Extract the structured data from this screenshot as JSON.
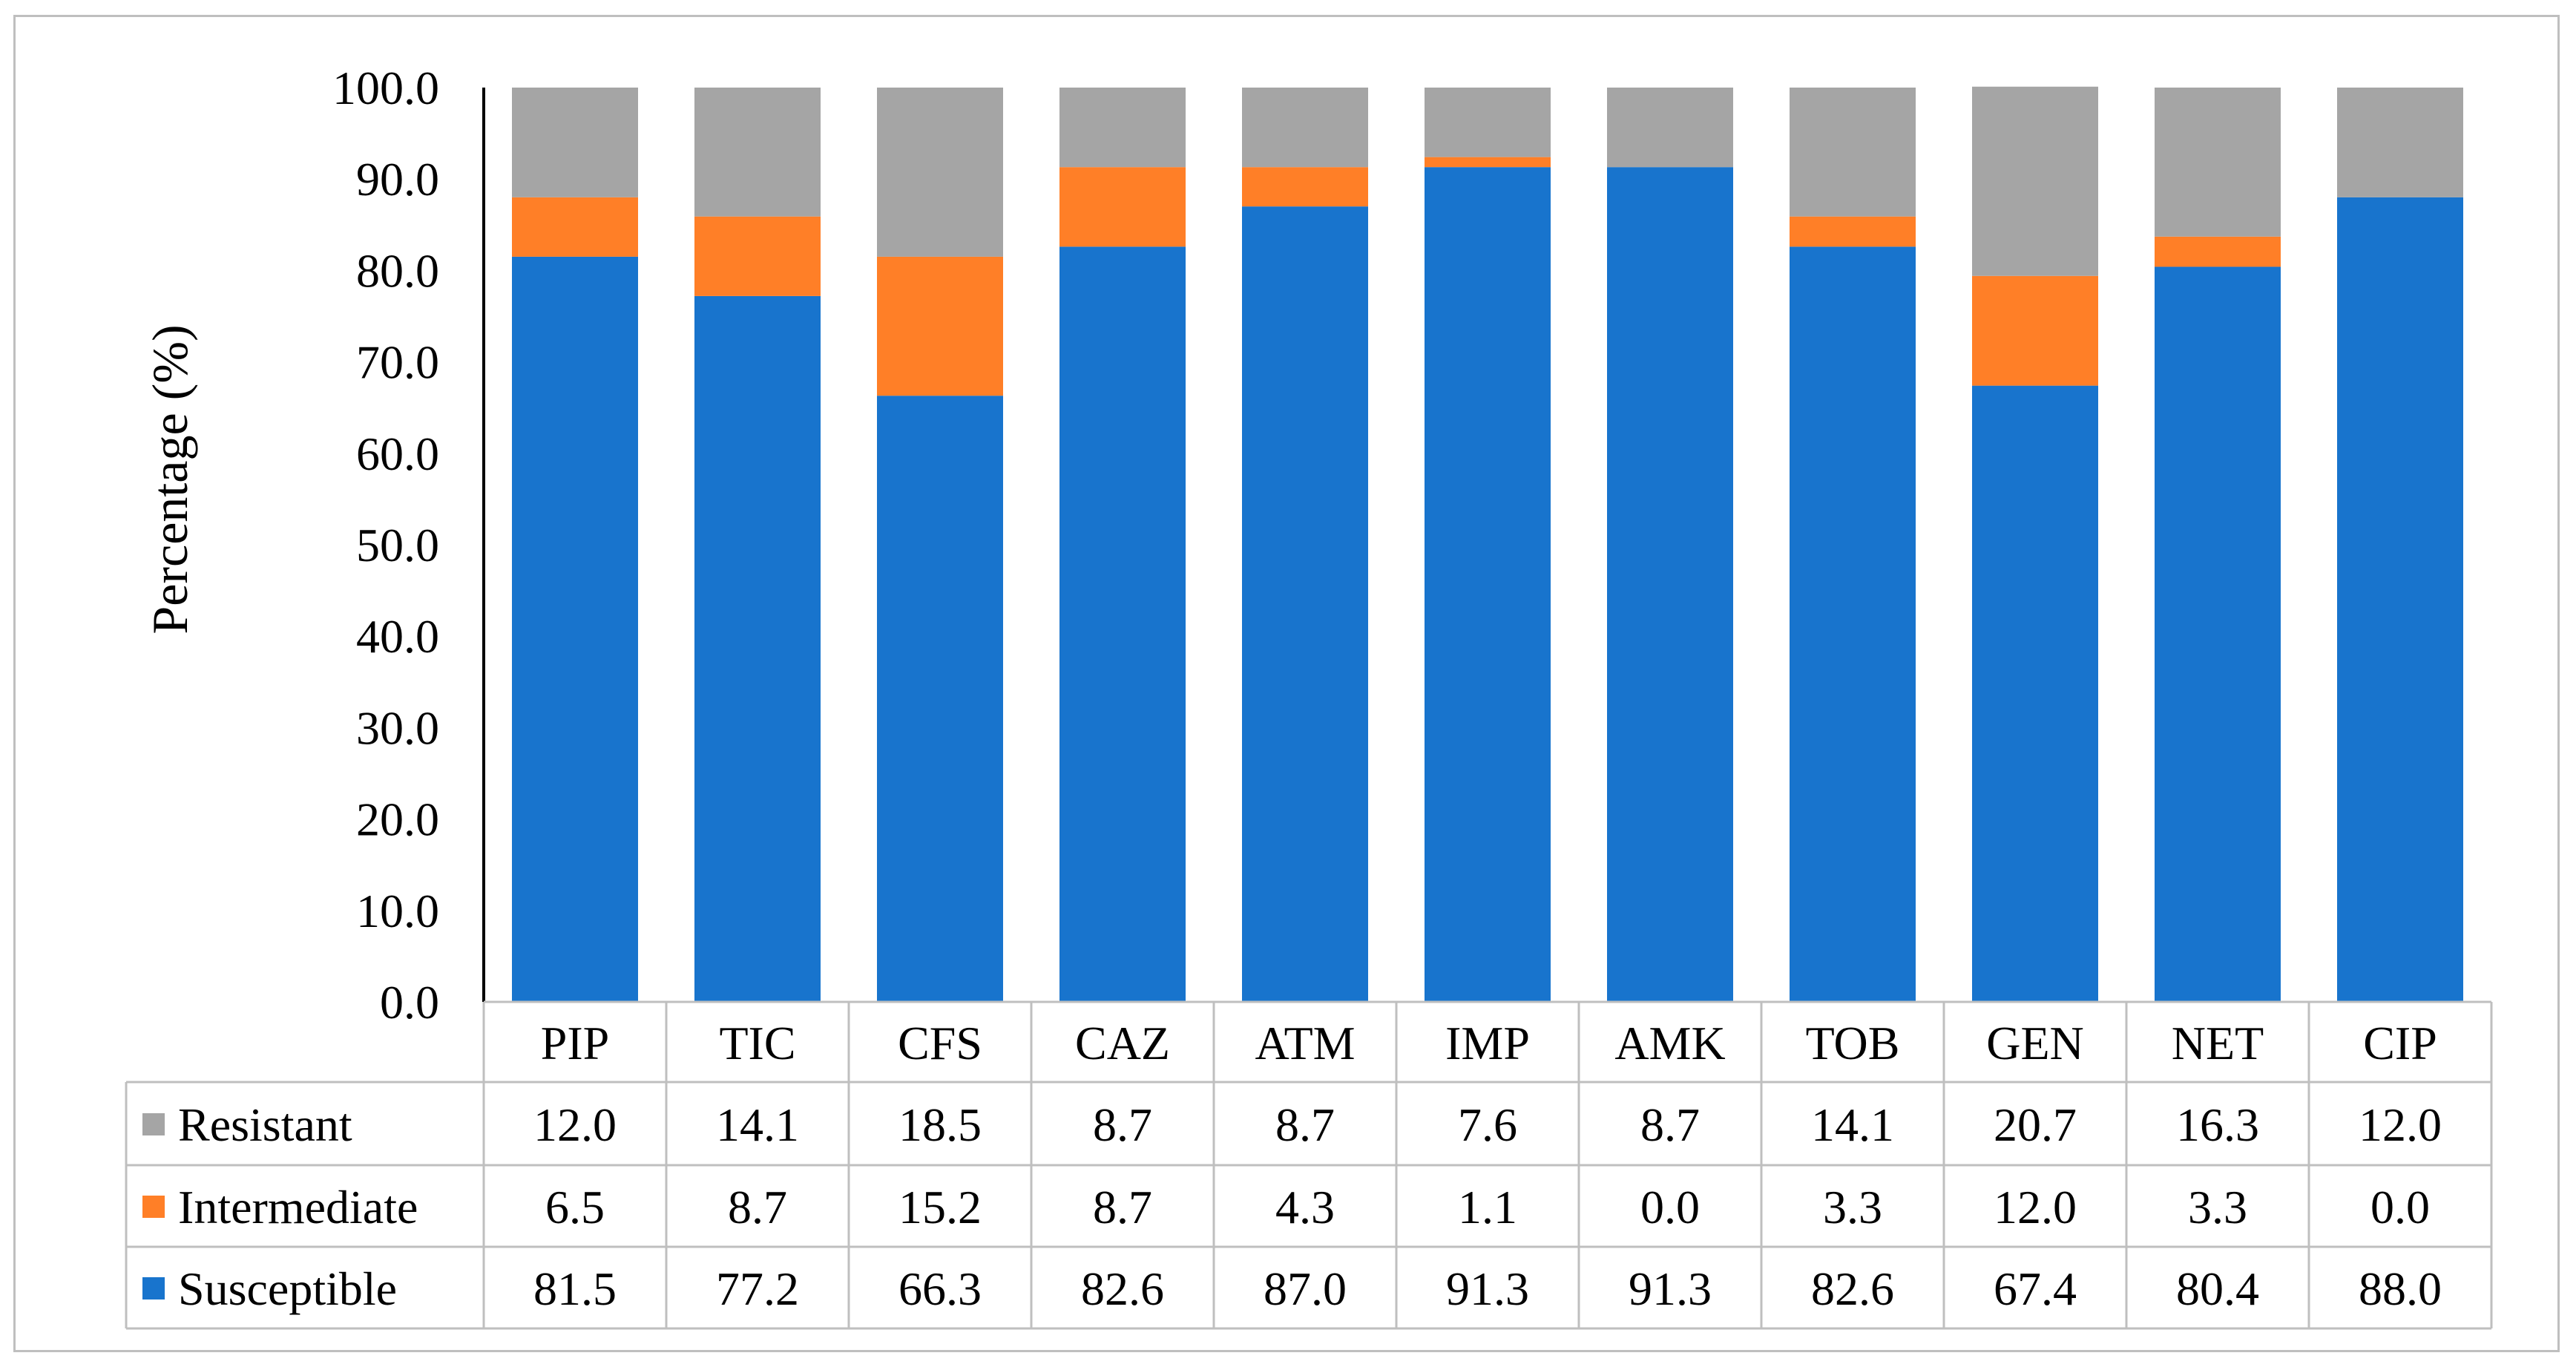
{
  "chart_data": {
    "type": "bar",
    "stacked": true,
    "title": "",
    "xlabel": "",
    "ylabel": "Percentage (%)",
    "ylim": [
      0,
      100
    ],
    "yticks": [
      "0.0",
      "10.0",
      "20.0",
      "30.0",
      "40.0",
      "50.0",
      "60.0",
      "70.0",
      "80.0",
      "90.0",
      "100.0"
    ],
    "categories": [
      "PIP",
      "TIC",
      "CFS",
      "CAZ",
      "ATM",
      "IMP",
      "AMK",
      "TOB",
      "GEN",
      "NET",
      "CIP"
    ],
    "series": [
      {
        "name": "Susceptible",
        "color": "#1874CD",
        "values": [
          81.5,
          77.2,
          66.3,
          82.6,
          87.0,
          91.3,
          91.3,
          82.6,
          67.4,
          80.4,
          88.0
        ],
        "labels": [
          "81.5",
          "77.2",
          "66.3",
          "82.6",
          "87.0",
          "91.3",
          "91.3",
          "82.6",
          "67.4",
          "80.4",
          "88.0"
        ]
      },
      {
        "name": "Intermediate",
        "color": "#FF7F27",
        "values": [
          6.5,
          8.7,
          15.2,
          8.7,
          4.3,
          1.1,
          0.0,
          3.3,
          12.0,
          3.3,
          0.0
        ],
        "labels": [
          "6.5",
          "8.7",
          "15.2",
          "8.7",
          "4.3",
          "1.1",
          "0.0",
          "3.3",
          "12.0",
          "3.3",
          "0.0"
        ]
      },
      {
        "name": "Resistant",
        "color": "#A5A5A5",
        "values": [
          12.0,
          14.1,
          18.5,
          8.7,
          8.7,
          7.6,
          8.7,
          14.1,
          20.7,
          16.3,
          12.0
        ],
        "labels": [
          "12.0",
          "14.1",
          "18.5",
          "8.7",
          "8.7",
          "7.6",
          "8.7",
          "14.1",
          "20.7",
          "16.3",
          "12.0"
        ]
      }
    ],
    "table_row_order": [
      "Resistant",
      "Intermediate",
      "Susceptible"
    ],
    "legend_placement": "data-table"
  }
}
